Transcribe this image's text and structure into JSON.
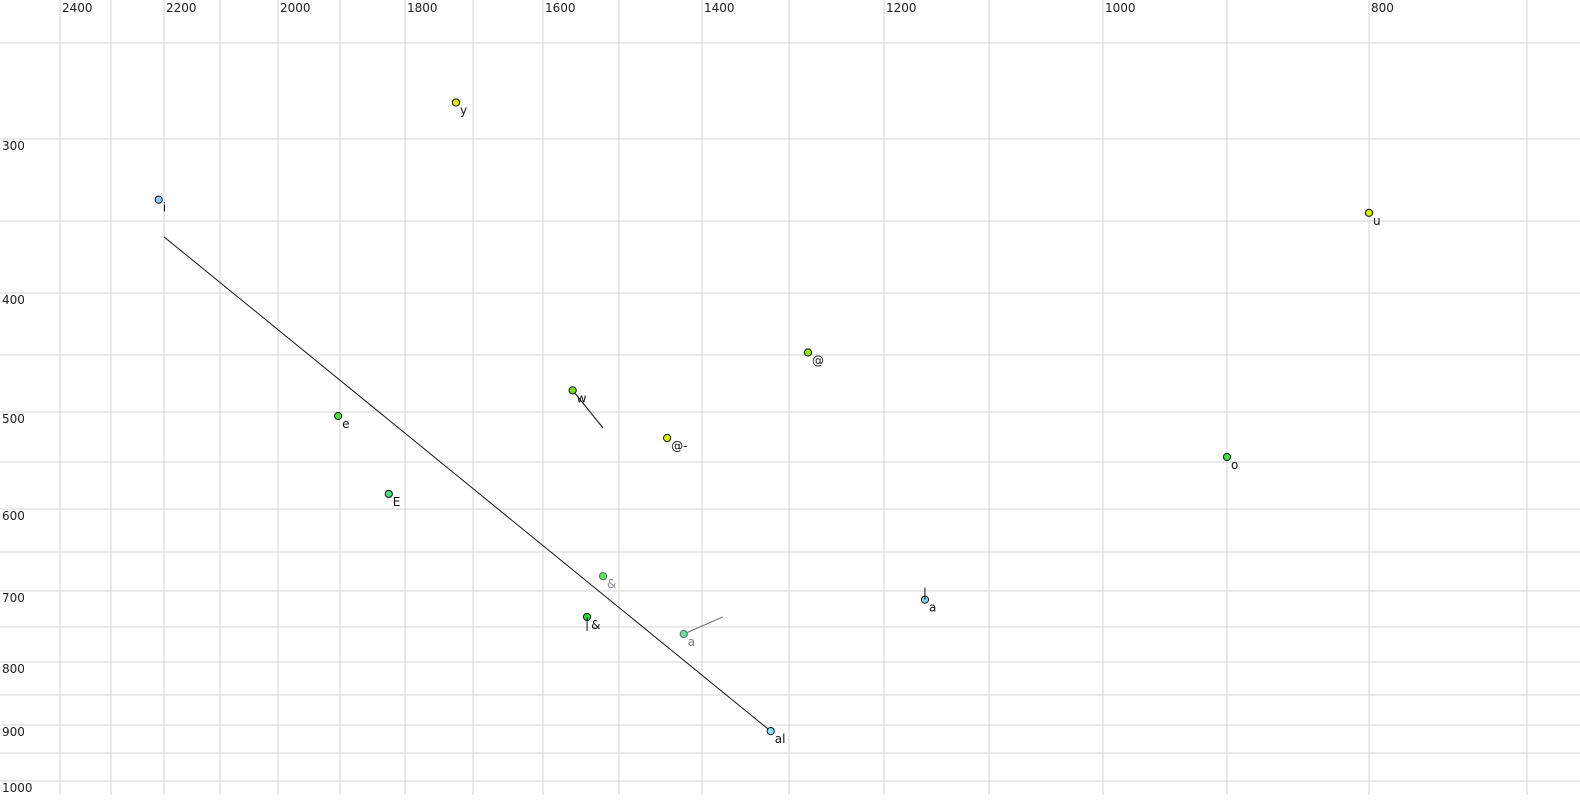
{
  "chart_data": {
    "type": "scatter",
    "title": "",
    "xlabel": "",
    "ylabel": "",
    "x_reversed": true,
    "y_reversed": true,
    "xlim": [
      2400,
      700
    ],
    "ylim": [
      250,
      1000
    ],
    "grid": true,
    "x_grid_values": [
      2400,
      2300,
      2200,
      2100,
      2000,
      1900,
      1800,
      1700,
      1600,
      1500,
      1400,
      1300,
      1200,
      1100,
      1000,
      900,
      800,
      700
    ],
    "y_grid_values": [
      250,
      300,
      350,
      400,
      450,
      500,
      550,
      600,
      650,
      700,
      750,
      800,
      850,
      900,
      950,
      1000
    ],
    "x_tick_labels": [
      "2400",
      "2200",
      "2000",
      "1800",
      "1600",
      "1400",
      "1200",
      "1000",
      "800"
    ],
    "y_tick_labels": [
      "300",
      "400",
      "500",
      "600",
      "700",
      "800",
      "900",
      "1000"
    ],
    "points": [
      {
        "label": "i",
        "x": 2210,
        "y": 337,
        "color": "#8fd0ff",
        "label_color": "#111"
      },
      {
        "label": "y",
        "x": 1725,
        "y": 281,
        "color": "#e2f200",
        "label_color": "#111"
      },
      {
        "label": "u",
        "x": 800,
        "y": 345,
        "color": "#d6f000",
        "label_color": "#111"
      },
      {
        "label": "@",
        "x": 1280,
        "y": 448,
        "color": "#8eec10",
        "label_color": "#111"
      },
      {
        "label": "w",
        "x": 1561,
        "y": 481,
        "color": "#74e020",
        "label_color": "#111",
        "trail": [
          1521,
          516
        ]
      },
      {
        "label": "@-",
        "x": 1442,
        "y": 526,
        "color": "#dcf000",
        "label_color": "#111"
      },
      {
        "label": "e",
        "x": 1903,
        "y": 504,
        "color": "#4ade44",
        "label_color": "#111"
      },
      {
        "label": "E",
        "x": 1825,
        "y": 584,
        "color": "#4ade7a",
        "label_color": "#111"
      },
      {
        "label": "o",
        "x": 900,
        "y": 545,
        "color": "#44dd44",
        "label_color": "#111"
      },
      {
        "label": "&",
        "x": 1521,
        "y": 681,
        "color": "#5ee65e",
        "label_color": "#8a8a9a",
        "faded": true
      },
      {
        "label": "&",
        "x": 1542,
        "y": 736,
        "color": "#33dd33",
        "label_color": "#111",
        "stem": "down"
      },
      {
        "label": "a",
        "x": 1422,
        "y": 760,
        "color": "#66e0a0",
        "label_color": "#7a7a8a",
        "faded": true,
        "trail": [
          1376,
          736
        ]
      },
      {
        "label": "a",
        "x": 1161,
        "y": 712,
        "color": "#8fd0f0",
        "label_color": "#111",
        "stem": "up"
      },
      {
        "label": "al",
        "x": 1321,
        "y": 911,
        "color": "#8ee0ff",
        "label_color": "#111"
      }
    ],
    "lines": [
      {
        "from": [
          2200,
          361
        ],
        "to": [
          1321,
          911
        ]
      }
    ]
  }
}
